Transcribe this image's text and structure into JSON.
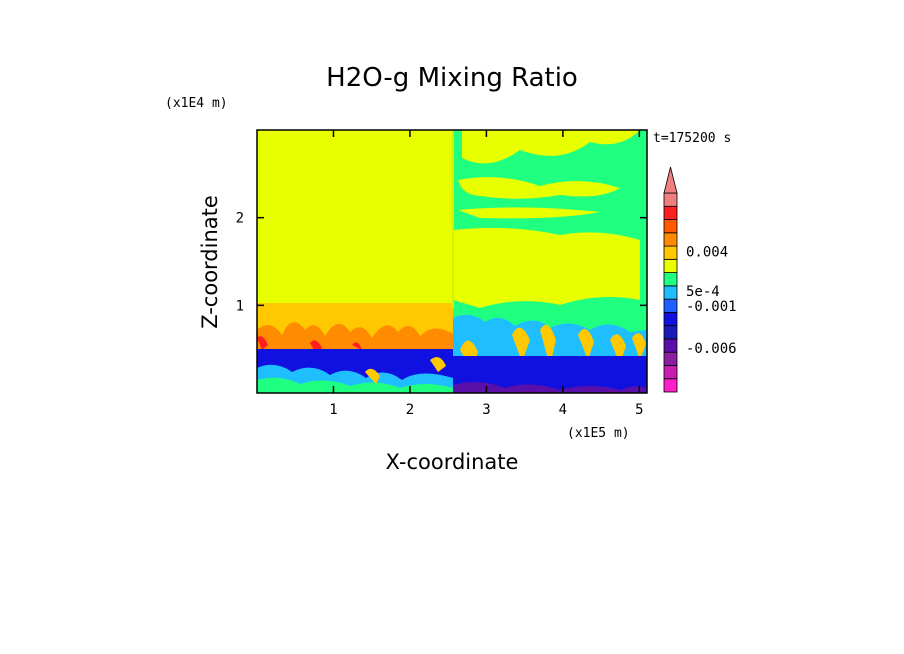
{
  "chart_data": {
    "type": "heatmap",
    "title": "H2O-g Mixing Ratio",
    "xlabel": "X-coordinate",
    "ylabel": "Z-coordinate",
    "x_unit": "(x1E5 m)",
    "y_unit": "(x1E4 m)",
    "time_label": "t=175200 s",
    "xlim": [
      0,
      5.1
    ],
    "ylim": [
      0,
      3.0
    ],
    "x_ticks": [
      {
        "value": 1,
        "label": "1"
      },
      {
        "value": 2,
        "label": "2"
      },
      {
        "value": 3,
        "label": "3"
      },
      {
        "value": 4,
        "label": "4"
      },
      {
        "value": 5,
        "label": "5"
      }
    ],
    "y_ticks": [
      {
        "value": 1,
        "label": "1"
      },
      {
        "value": 2,
        "label": "2"
      }
    ],
    "colorbar": {
      "colors": [
        "#ff1fc8",
        "#c81fb0",
        "#8a1fa0",
        "#5a10a8",
        "#1a1ab8",
        "#1010e0",
        "#1f5fff",
        "#1fbfff",
        "#1fff80",
        "#e8ff00",
        "#ffc800",
        "#ff8c00",
        "#ff5a00",
        "#ff1f1f",
        "#f08080"
      ],
      "labels": [
        {
          "text": "-0.006",
          "level": 3.3
        },
        {
          "text": "-0.001",
          "level": 6.5
        },
        {
          "text": "5e-4",
          "level": 7.6
        },
        {
          "text": "0.004",
          "level": 10.6
        }
      ]
    }
  }
}
